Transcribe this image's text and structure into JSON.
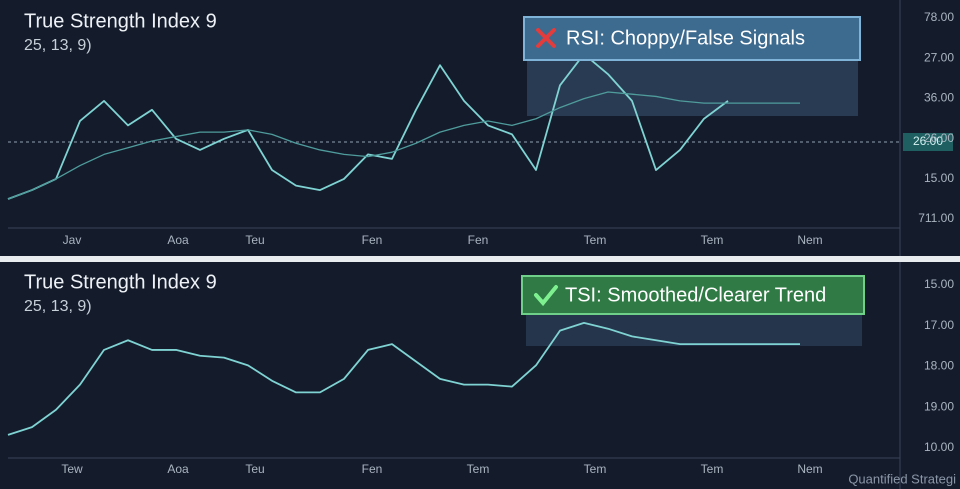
{
  "chart_data": [
    {
      "type": "line",
      "title": "True Strength Index 9",
      "subtitle": "25, 13, 9)",
      "annotation": "RSI: Choppy/False Signals",
      "price_tag": "26.00",
      "x_labels": [
        "Jav",
        "Aoa",
        "Teu",
        "Fen",
        "Fen",
        "Tem",
        "Tem",
        "Nem"
      ],
      "y_labels": [
        "78.00",
        "27.00",
        "36.00",
        "26.00",
        "15.00",
        "711.00"
      ],
      "ylim": [
        0,
        100
      ],
      "series": [
        {
          "color": "#7fd3d3",
          "values": [
            13,
            17,
            22,
            48,
            57,
            46,
            53,
            40,
            35,
            40,
            44,
            26,
            19,
            17,
            22,
            33,
            31,
            53,
            73,
            57,
            46,
            42,
            26,
            64,
            78,
            69,
            57,
            26,
            35,
            49,
            57,
            null,
            null,
            null
          ]
        },
        {
          "color": "#4f9c9c",
          "values": [
            13,
            17,
            22,
            28,
            33,
            36,
            39,
            41,
            43,
            43,
            44,
            42,
            38,
            35,
            33,
            32,
            34,
            38,
            43,
            46,
            48,
            46,
            49,
            54,
            58,
            61,
            60,
            59,
            57,
            56,
            56,
            56,
            56,
            56
          ]
        }
      ]
    },
    {
      "type": "line",
      "title": "True Strength Index 9",
      "subtitle": "25, 13, 9)",
      "annotation": "TSI: Smoothed/Clearer Trend",
      "x_labels": [
        "Tew",
        "Aoa",
        "Teu",
        "Fen",
        "Tem",
        "Tem",
        "Tem",
        "Nem"
      ],
      "y_labels": [
        "15.00",
        "17.00",
        "18.00",
        "19.00",
        "10.00"
      ],
      "ylim": [
        0,
        100
      ],
      "series": [
        {
          "color": "#7fd3d3",
          "values": [
            12,
            16,
            25,
            38,
            56,
            61,
            56,
            56,
            53,
            52,
            48,
            40,
            34,
            34,
            41,
            56,
            59,
            50,
            41,
            38,
            38,
            37,
            48,
            66,
            70,
            67,
            63,
            61,
            59,
            59,
            59,
            59,
            59,
            59
          ]
        }
      ]
    }
  ],
  "watermark": "Quantified Strategi"
}
